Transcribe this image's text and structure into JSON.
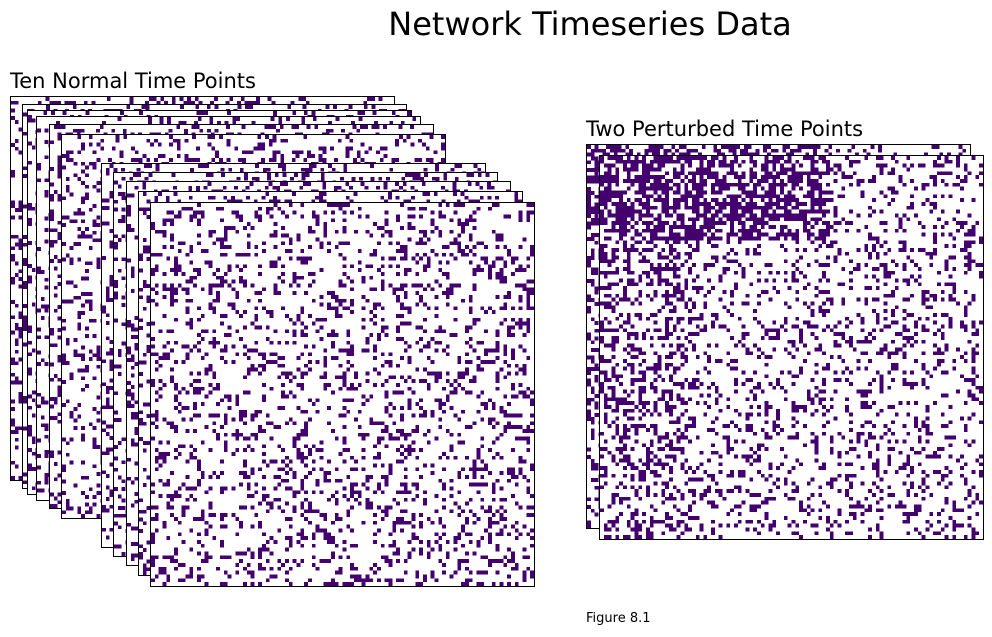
{
  "title": "Network Timeseries Data",
  "caption": "Figure 8.1",
  "chart_data": [
    {
      "type": "heatmap",
      "title": "Ten Normal Time Points",
      "layers": 10,
      "size": 100,
      "density": 0.22,
      "colors": {
        "on": "#43006e",
        "off": "#ffffff"
      }
    },
    {
      "type": "heatmap",
      "title": "Two Perturbed Time Points",
      "layers": 2,
      "size": 100,
      "density": 0.2,
      "hot_block_density": 0.6,
      "colors": {
        "on": "#43006e",
        "off": "#ffffff"
      }
    }
  ]
}
